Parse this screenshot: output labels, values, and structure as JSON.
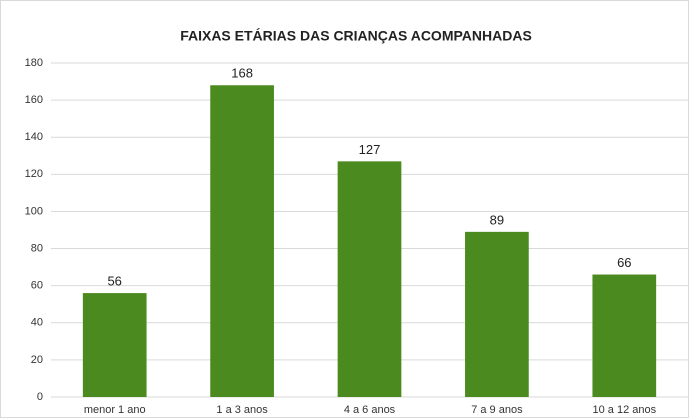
{
  "chart_data": {
    "type": "bar",
    "title": "FAIXAS ETÁRIAS DAS CRIANÇAS ACOMPANHADAS",
    "categories": [
      "menor 1 ano",
      "1 a 3 anos",
      "4 a 6 anos",
      "7 a 9 anos",
      "10 a 12 anos"
    ],
    "values": [
      56,
      168,
      127,
      89,
      66
    ],
    "color": "#4b8a1e",
    "ylim": [
      0,
      180
    ],
    "yticks": [
      0,
      20,
      40,
      60,
      80,
      100,
      120,
      140,
      160,
      180
    ],
    "grid": true
  }
}
